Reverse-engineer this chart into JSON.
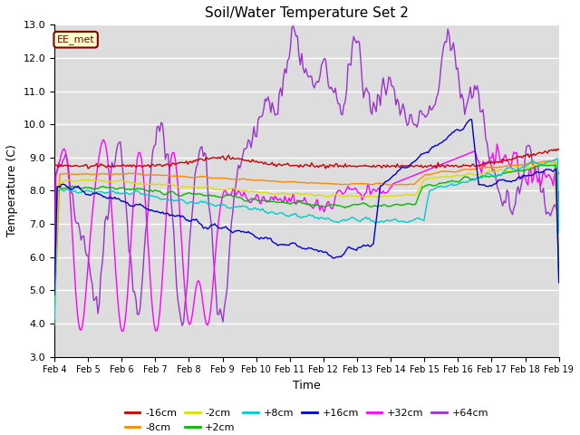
{
  "title": "Soil/Water Temperature Set 2",
  "xlabel": "Time",
  "ylabel": "Temperature (C)",
  "ylim": [
    3.0,
    13.0
  ],
  "yticks": [
    3.0,
    4.0,
    5.0,
    6.0,
    7.0,
    8.0,
    9.0,
    10.0,
    11.0,
    12.0,
    13.0
  ],
  "x_tick_labels": [
    "Feb 4",
    "Feb 5",
    "Feb 6",
    "Feb 7",
    "Feb 8",
    "Feb 9",
    "Feb 10",
    "Feb 11",
    "Feb 12",
    "Feb 13",
    "Feb 14",
    "Feb 15",
    "Feb 16",
    "Feb 17",
    "Feb 18",
    "Feb 19"
  ],
  "annotation_text": "EE_met",
  "annotation_color": "#800000",
  "annotation_bg": "#ffffcc",
  "bg_color": "#dddddd",
  "series_colors": {
    "-16cm": "#cc0000",
    "-8cm": "#ff8800",
    "-2cm": "#dddd00",
    "+2cm": "#00bb00",
    "+8cm": "#00cccc",
    "+16cm": "#0000cc",
    "+32cm": "#ff00ff",
    "+64cm": "#9933cc"
  },
  "legend_order": [
    "-16cm",
    "-8cm",
    "-2cm",
    "+2cm",
    "+8cm",
    "+16cm",
    "+32cm",
    "+64cm"
  ]
}
